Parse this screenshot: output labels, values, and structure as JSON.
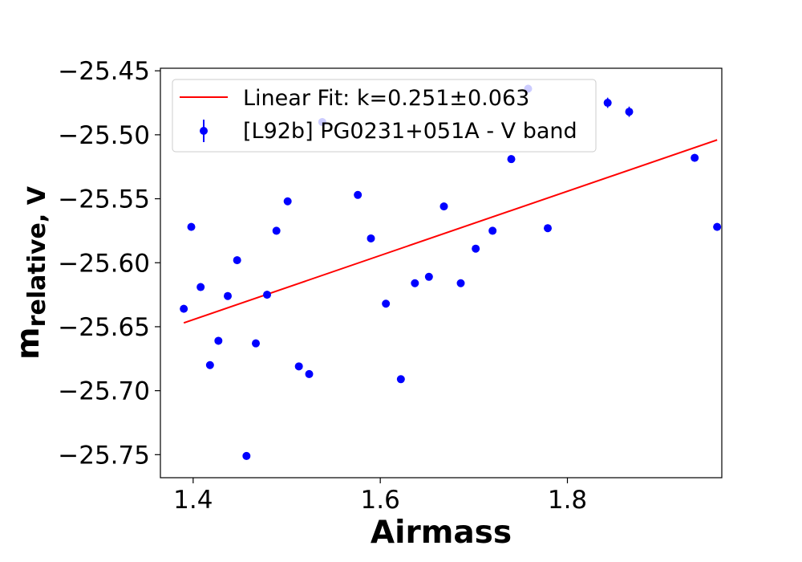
{
  "chart_data": {
    "type": "scatter",
    "xlabel": "Airmass",
    "ylabel_main": "m",
    "ylabel_sub": "relative, V",
    "xlim": [
      1.365,
      1.965
    ],
    "ylim": [
      -25.768,
      -25.448
    ],
    "x_ticks": [
      1.4,
      1.6,
      1.8
    ],
    "x_tick_labels": [
      "1.4",
      "1.6",
      "1.8"
    ],
    "y_ticks": [
      -25.45,
      -25.5,
      -25.55,
      -25.6,
      -25.65,
      -25.7,
      -25.75
    ],
    "y_tick_labels": [
      "−25.45",
      "−25.50",
      "−25.55",
      "−25.60",
      "−25.65",
      "−25.70",
      "−25.75"
    ],
    "grid": false,
    "legend_position": "top-left",
    "series": [
      {
        "name": "Linear Fit: k=0.251±0.063",
        "kind": "line",
        "color": "#ff0000",
        "x": [
          1.39,
          1.96
        ],
        "y": [
          -25.647,
          -25.504
        ]
      },
      {
        "name": "[L92b] PG0231+051A - V band",
        "kind": "errorbar",
        "color": "#0000ff",
        "points": [
          {
            "x": 1.39,
            "y": -25.636,
            "err": 0.003
          },
          {
            "x": 1.398,
            "y": -25.572,
            "err": 0.003
          },
          {
            "x": 1.408,
            "y": -25.619,
            "err": 0.003
          },
          {
            "x": 1.418,
            "y": -25.68,
            "err": 0.003
          },
          {
            "x": 1.427,
            "y": -25.661,
            "err": 0.003
          },
          {
            "x": 1.437,
            "y": -25.626,
            "err": 0.003
          },
          {
            "x": 1.447,
            "y": -25.598,
            "err": 0.003
          },
          {
            "x": 1.457,
            "y": -25.751,
            "err": 0.003
          },
          {
            "x": 1.467,
            "y": -25.663,
            "err": 0.003
          },
          {
            "x": 1.479,
            "y": -25.625,
            "err": 0.003
          },
          {
            "x": 1.489,
            "y": -25.575,
            "err": 0.003
          },
          {
            "x": 1.501,
            "y": -25.552,
            "err": 0.003
          },
          {
            "x": 1.513,
            "y": -25.681,
            "err": 0.003
          },
          {
            "x": 1.524,
            "y": -25.687,
            "err": 0.003
          },
          {
            "x": 1.538,
            "y": -25.49,
            "err": 0.003
          },
          {
            "x": 1.576,
            "y": -25.547,
            "err": 0.003
          },
          {
            "x": 1.59,
            "y": -25.581,
            "err": 0.003
          },
          {
            "x": 1.606,
            "y": -25.632,
            "err": 0.003
          },
          {
            "x": 1.622,
            "y": -25.691,
            "err": 0.003
          },
          {
            "x": 1.637,
            "y": -25.616,
            "err": 0.003
          },
          {
            "x": 1.652,
            "y": -25.611,
            "err": 0.003
          },
          {
            "x": 1.668,
            "y": -25.556,
            "err": 0.003
          },
          {
            "x": 1.686,
            "y": -25.616,
            "err": 0.003
          },
          {
            "x": 1.702,
            "y": -25.589,
            "err": 0.003
          },
          {
            "x": 1.72,
            "y": -25.575,
            "err": 0.003
          },
          {
            "x": 1.74,
            "y": -25.519,
            "err": 0.003
          },
          {
            "x": 1.758,
            "y": -25.464,
            "err": 0.003
          },
          {
            "x": 1.779,
            "y": -25.573,
            "err": 0.003
          },
          {
            "x": 1.843,
            "y": -25.475,
            "err": 0.004
          },
          {
            "x": 1.866,
            "y": -25.482,
            "err": 0.004
          },
          {
            "x": 1.936,
            "y": -25.518,
            "err": 0.003
          },
          {
            "x": 1.96,
            "y": -25.572,
            "err": 0.003
          }
        ]
      }
    ]
  }
}
